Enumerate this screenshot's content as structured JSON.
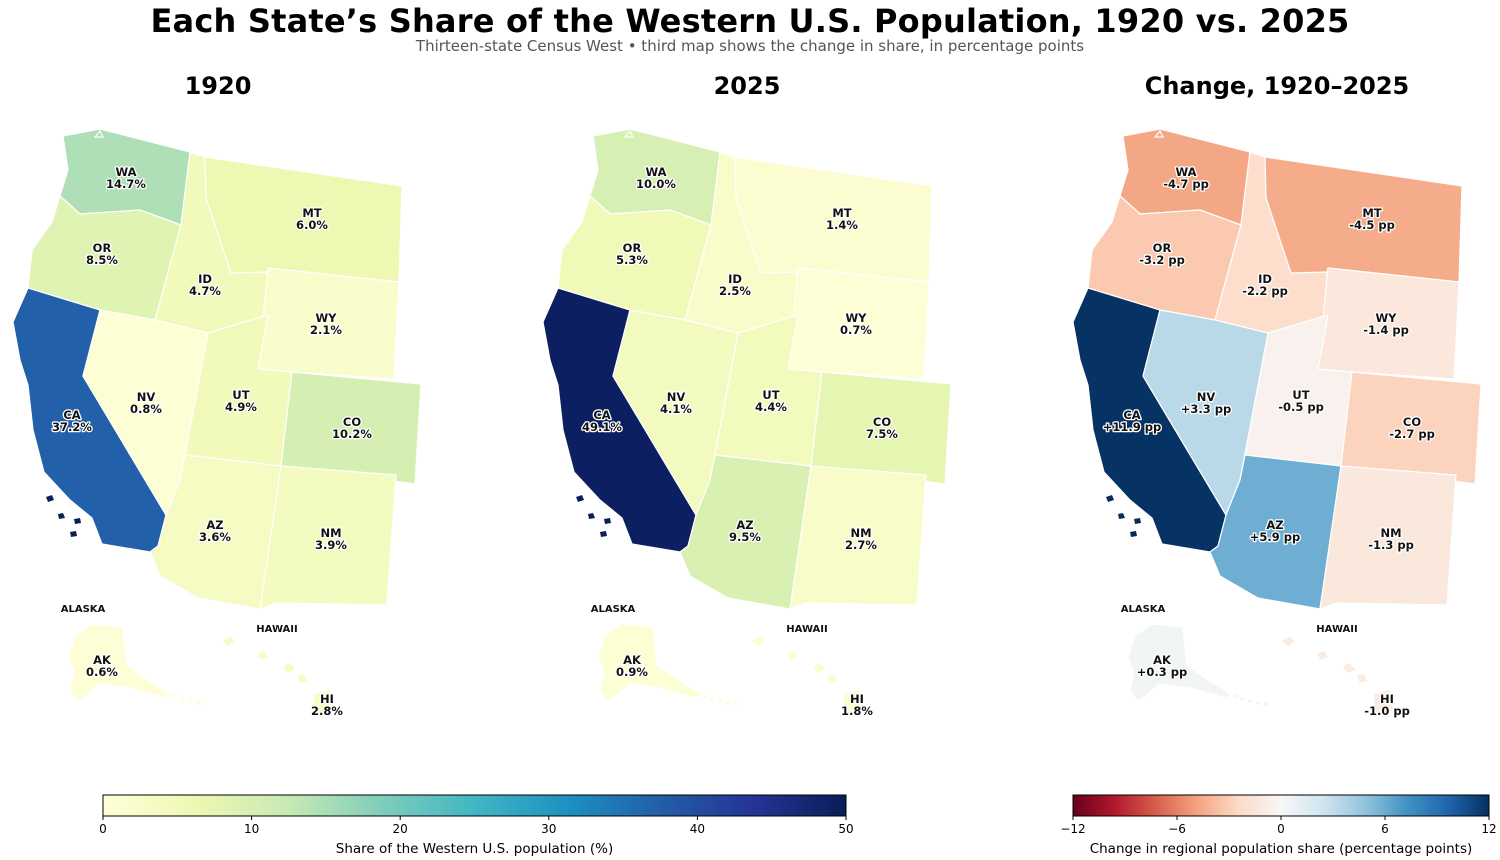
{
  "title": "Each State’s Share of the Western U.S. Population, 1920 vs. 2025",
  "subtitle": "Thirteen-state Census West • third map shows the change in share, in percentage points",
  "panels": [
    {
      "title": "1920"
    },
    {
      "title": "2025"
    },
    {
      "title": "Change, 1920–2025"
    }
  ],
  "insets": {
    "alaska": "ALASKA",
    "hawaii": "HAWAII"
  },
  "states": [
    {
      "abbr": "WA",
      "share_1920": 14.7,
      "share_2025": 10.0,
      "change": -4.7
    },
    {
      "abbr": "OR",
      "share_1920": 8.5,
      "share_2025": 5.3,
      "change": -3.2
    },
    {
      "abbr": "CA",
      "share_1920": 37.2,
      "share_2025": 49.1,
      "change": 11.9
    },
    {
      "abbr": "ID",
      "share_1920": 4.7,
      "share_2025": 2.5,
      "change": -2.2
    },
    {
      "abbr": "NV",
      "share_1920": 0.8,
      "share_2025": 4.1,
      "change": 3.3
    },
    {
      "abbr": "MT",
      "share_1920": 6.0,
      "share_2025": 1.4,
      "change": -4.5
    },
    {
      "abbr": "WY",
      "share_1920": 2.1,
      "share_2025": 0.7,
      "change": -1.4
    },
    {
      "abbr": "UT",
      "share_1920": 4.9,
      "share_2025": 4.4,
      "change": -0.5
    },
    {
      "abbr": "CO",
      "share_1920": 10.2,
      "share_2025": 7.5,
      "change": -2.7
    },
    {
      "abbr": "AZ",
      "share_1920": 3.6,
      "share_2025": 9.5,
      "change": 5.9
    },
    {
      "abbr": "NM",
      "share_1920": 3.9,
      "share_2025": 2.7,
      "change": -1.3
    },
    {
      "abbr": "AK",
      "share_1920": 0.6,
      "share_2025": 0.9,
      "change": 0.3
    },
    {
      "abbr": "HI",
      "share_1920": 2.8,
      "share_2025": 1.8,
      "change": -1.0
    }
  ],
  "share_colorbar": {
    "label": "Share of the Western U.S. population (%)",
    "min": 0,
    "max": 50,
    "ticks": [
      "0",
      "10",
      "20",
      "30",
      "40",
      "50"
    ],
    "colormap": "YlGnBu",
    "stops": [
      "#ffffd9",
      "#edf8b1",
      "#c7e9b4",
      "#7fcdbb",
      "#41b6c4",
      "#1d91c0",
      "#225ea8",
      "#253494",
      "#081d58"
    ]
  },
  "change_colorbar": {
    "label": "Change in regional population share (percentage points)",
    "min": -12,
    "max": 12,
    "ticks": [
      "−12",
      "−6",
      "0",
      "6",
      "12"
    ],
    "colormap": "RdBu",
    "stops": [
      "#67001f",
      "#b2182b",
      "#d6604d",
      "#f4a582",
      "#fddbc7",
      "#f7f7f7",
      "#d1e5f0",
      "#92c5de",
      "#4393c3",
      "#2166ac",
      "#053061"
    ]
  },
  "units": {
    "share_suffix": "%",
    "change_suffix": " pp"
  }
}
